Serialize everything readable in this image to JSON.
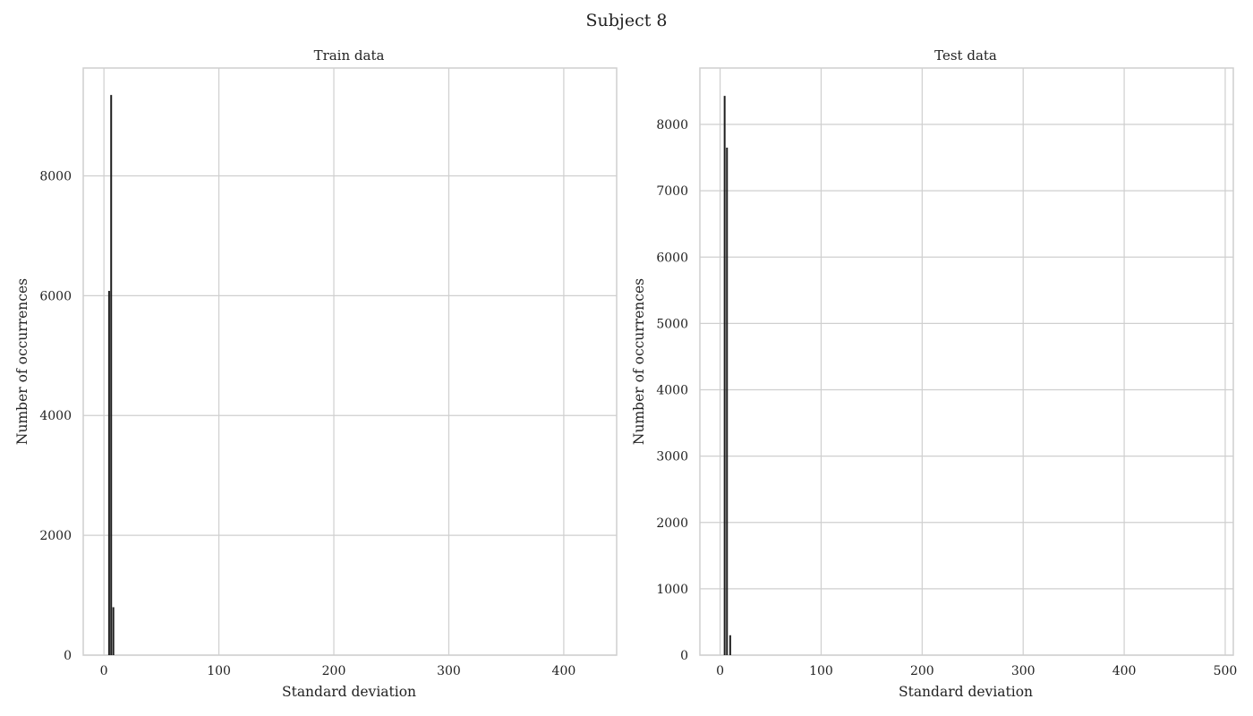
{
  "suptitle": "Subject 8",
  "colors": {
    "bar": "#1f1f1f",
    "grid": "#cfcfcf",
    "spine": "#cfcfcf",
    "text": "#222222",
    "background": "#ffffff"
  },
  "chart_data": [
    {
      "type": "bar",
      "title": "Train data",
      "xlabel": "Standard deviation",
      "ylabel": "Number of occurrences",
      "xlim": [
        -18,
        446
      ],
      "ylim": [
        0,
        9800
      ],
      "xticks": [
        0,
        100,
        200,
        300,
        400
      ],
      "yticks": [
        0,
        2000,
        4000,
        6000,
        8000
      ],
      "grid": true,
      "bars": [
        {
          "x": 4.5,
          "value": 6080
        },
        {
          "x": 6.3,
          "value": 9350
        },
        {
          "x": 8.2,
          "value": 800
        }
      ]
    },
    {
      "type": "bar",
      "title": "Test data",
      "xlabel": "Standard deviation",
      "ylabel": "Number of occurrences",
      "xlim": [
        -20,
        508
      ],
      "ylim": [
        0,
        8850
      ],
      "xticks": [
        0,
        100,
        200,
        300,
        400,
        500
      ],
      "yticks": [
        0,
        1000,
        2000,
        3000,
        4000,
        5000,
        6000,
        7000,
        8000
      ],
      "grid": true,
      "bars": [
        {
          "x": 4.5,
          "value": 8430
        },
        {
          "x": 6.8,
          "value": 7650
        },
        {
          "x": 10.0,
          "value": 300
        }
      ]
    }
  ]
}
